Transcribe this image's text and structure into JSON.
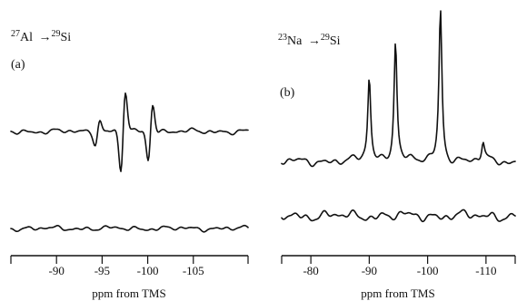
{
  "chart_data": [
    {
      "type": "line",
      "panel": "(a)",
      "label": {
        "iso1": "27",
        "el1": "Al",
        "iso2": "29",
        "el2": "Si"
      },
      "xlabel": "ppm from TMS",
      "xlim": [
        -85,
        -111
      ],
      "xticks": [
        -90,
        -95,
        -100,
        -105
      ],
      "tick_labels": [
        "-90",
        "-95",
        "-100",
        "-105"
      ],
      "series": [
        {
          "peaks": [
            {
              "x": -94.5,
              "amp": 0.3,
              "sign": 1
            },
            {
              "x": -97.3,
              "amp": 1.0,
              "sign": 1
            },
            {
              "x": -100.3,
              "amp": 0.72,
              "sign": 1
            }
          ]
        },
        {
          "peaks": []
        }
      ]
    },
    {
      "type": "line",
      "panel": "(b)",
      "label": {
        "iso1": "23",
        "el1": "Na",
        "iso2": "29",
        "el2": "Si"
      },
      "xlabel": "ppm from TMS",
      "xlim": [
        -75,
        -115
      ],
      "xticks": [
        -80,
        -90,
        -100,
        -110
      ],
      "tick_labels": [
        "-80",
        "-90",
        "-100",
        "-110"
      ],
      "series": [
        {
          "peaks": [
            {
              "x": -90.0,
              "amp": 0.56,
              "sign": 1
            },
            {
              "x": -94.5,
              "amp": 0.8,
              "sign": 1
            },
            {
              "x": -102.2,
              "amp": 1.0,
              "sign": 1
            },
            {
              "x": -109.5,
              "amp": 0.12,
              "sign": 1
            }
          ]
        },
        {
          "peaks": []
        }
      ]
    }
  ]
}
